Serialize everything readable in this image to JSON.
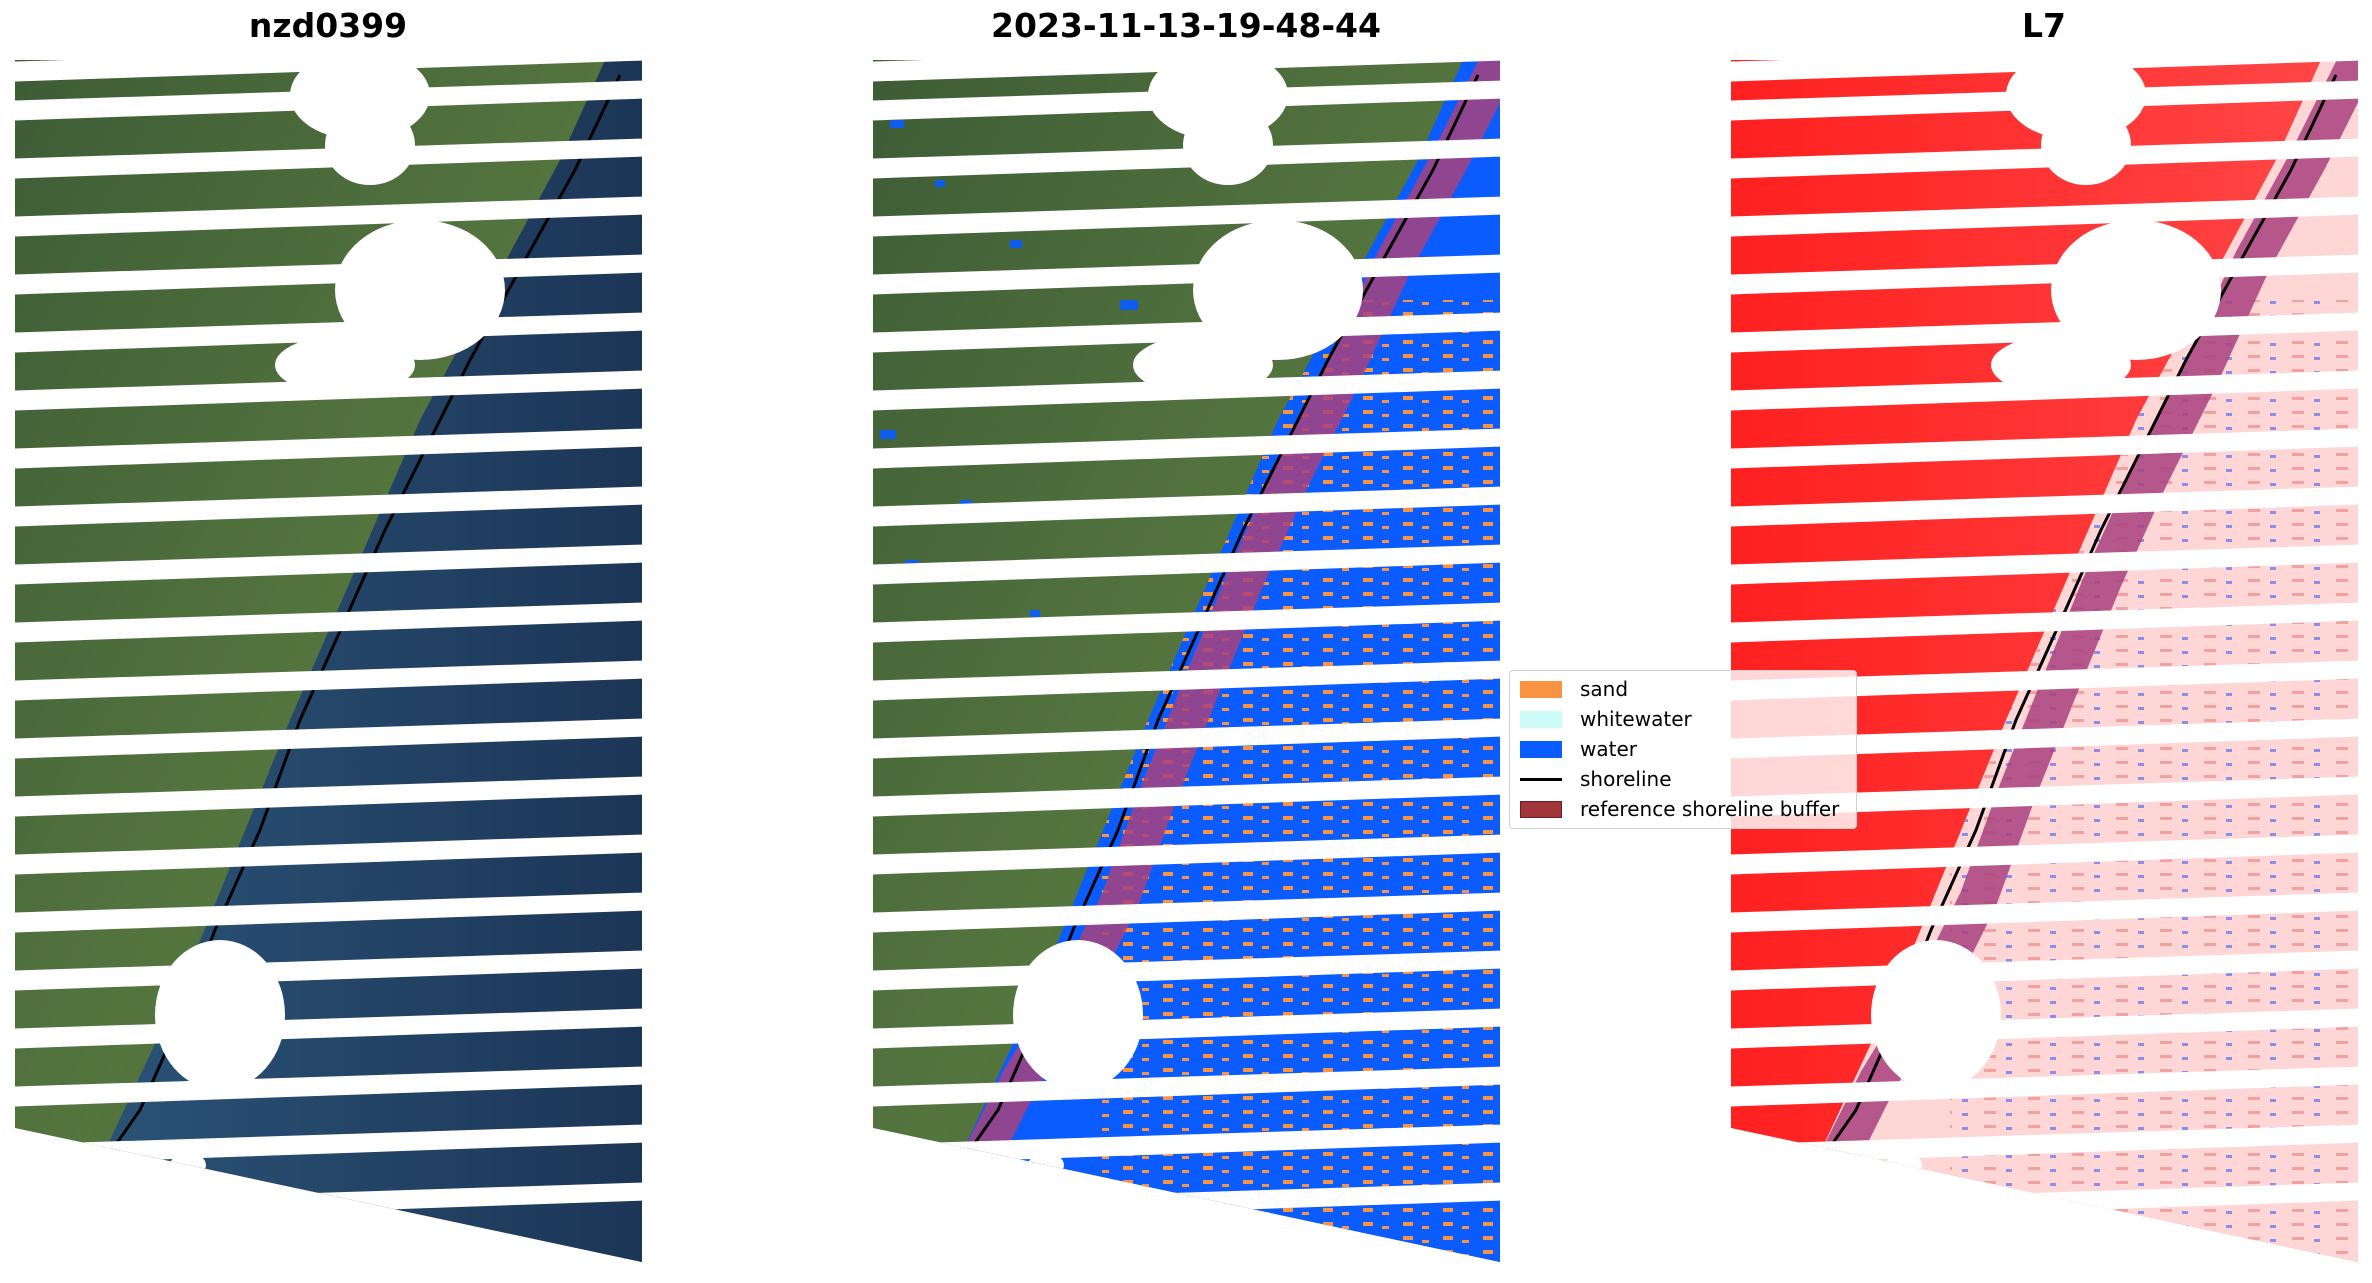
{
  "panels": [
    {
      "title": "nzd0399",
      "kind": "rgb"
    },
    {
      "title": "2023-11-13-19-48-44",
      "kind": "classified"
    },
    {
      "title": "L7",
      "kind": "index"
    }
  ],
  "legend": {
    "items": [
      {
        "label": "sand",
        "color": "#f79343",
        "type": "patch"
      },
      {
        "label": "whitewater",
        "color": "#cdfbf7",
        "type": "patch"
      },
      {
        "label": "water",
        "color": "#0a5cff",
        "type": "patch"
      },
      {
        "label": "shoreline",
        "color": "#000000",
        "type": "line"
      },
      {
        "label": "reference shoreline buffer",
        "color": "#a0353c",
        "type": "patch"
      }
    ]
  },
  "colors": {
    "land_dark": "#2e4a2c",
    "land_mid": "#4c6b3c",
    "sea": "#1d3556",
    "buffer": "#a8417e",
    "index_land": "#ff1e1e",
    "index_sea": "#ffd6d6"
  }
}
